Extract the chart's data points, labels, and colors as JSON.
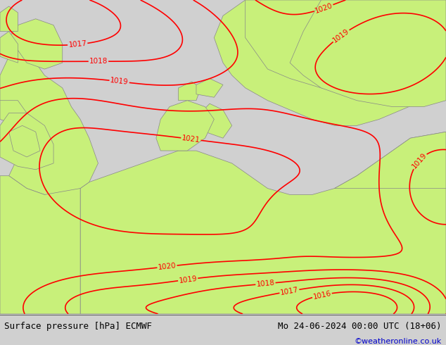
{
  "title_left": "Surface pressure [hPa] ECMWF",
  "title_right": "Mo 24-06-2024 00:00 UTC (18+06)",
  "credit": "©weatheronline.co.uk",
  "land_color": "#c8f07a",
  "sea_color": "#e8e8e8",
  "contour_color": "#ff0000",
  "border_color": "#888888",
  "bottom_bar_color": "#d0d0d0",
  "title_left_color": "#000000",
  "title_right_color": "#000000",
  "credit_color": "#0000cc",
  "figsize": [
    6.34,
    4.9
  ],
  "dpi": 100
}
